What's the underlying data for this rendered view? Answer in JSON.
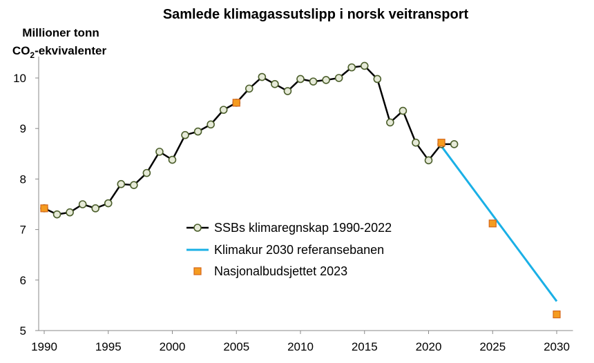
{
  "chart_data": {
    "type": "line",
    "title": "Samlede klimagassutslipp i norsk veitransport",
    "ylabel_line1": "Millioner tonn",
    "ylabel_line2_pre": "CO",
    "ylabel_line2_sub": "2",
    "ylabel_line2_post": "-ekvivalenter",
    "xlim": [
      1990,
      2031
    ],
    "ylim": [
      5,
      10.6
    ],
    "xticks": [
      1990,
      1995,
      2000,
      2005,
      2010,
      2015,
      2020,
      2025,
      2030
    ],
    "yticks": [
      5,
      6,
      7,
      8,
      9,
      10
    ],
    "grid": false,
    "legend_position": "center",
    "series": [
      {
        "name": "SSBs klimaregnskap 1990-2022",
        "style": "line-markers",
        "color": "#000000",
        "marker_color": "#4b5e2b",
        "x": [
          1990,
          1991,
          1992,
          1993,
          1994,
          1995,
          1996,
          1997,
          1998,
          1999,
          2000,
          2001,
          2002,
          2003,
          2004,
          2005,
          2006,
          2007,
          2008,
          2009,
          2010,
          2011,
          2012,
          2013,
          2014,
          2015,
          2016,
          2017,
          2018,
          2019,
          2020,
          2021,
          2022
        ],
        "y": [
          7.42,
          7.3,
          7.34,
          7.5,
          7.42,
          7.52,
          7.9,
          7.88,
          8.12,
          8.54,
          8.38,
          8.87,
          8.94,
          9.08,
          9.37,
          9.51,
          9.79,
          10.02,
          9.88,
          9.74,
          9.98,
          9.93,
          9.96,
          10.0,
          10.21,
          10.24,
          9.98,
          9.12,
          9.35,
          8.72,
          8.37,
          8.69,
          8.69
        ]
      },
      {
        "name": "Klimakur 2030 referansebanen",
        "style": "line",
        "color": "#1ab0e6",
        "x": [
          2021,
          2030
        ],
        "y": [
          8.65,
          5.58
        ]
      },
      {
        "name": "Nasjonalbudsjettet 2023",
        "style": "markers",
        "color": "#f59c20",
        "edge_color": "#d4661a",
        "x": [
          1990,
          2005,
          2021,
          2025,
          2030
        ],
        "y": [
          7.42,
          9.51,
          8.72,
          7.12,
          5.32
        ]
      }
    ]
  }
}
